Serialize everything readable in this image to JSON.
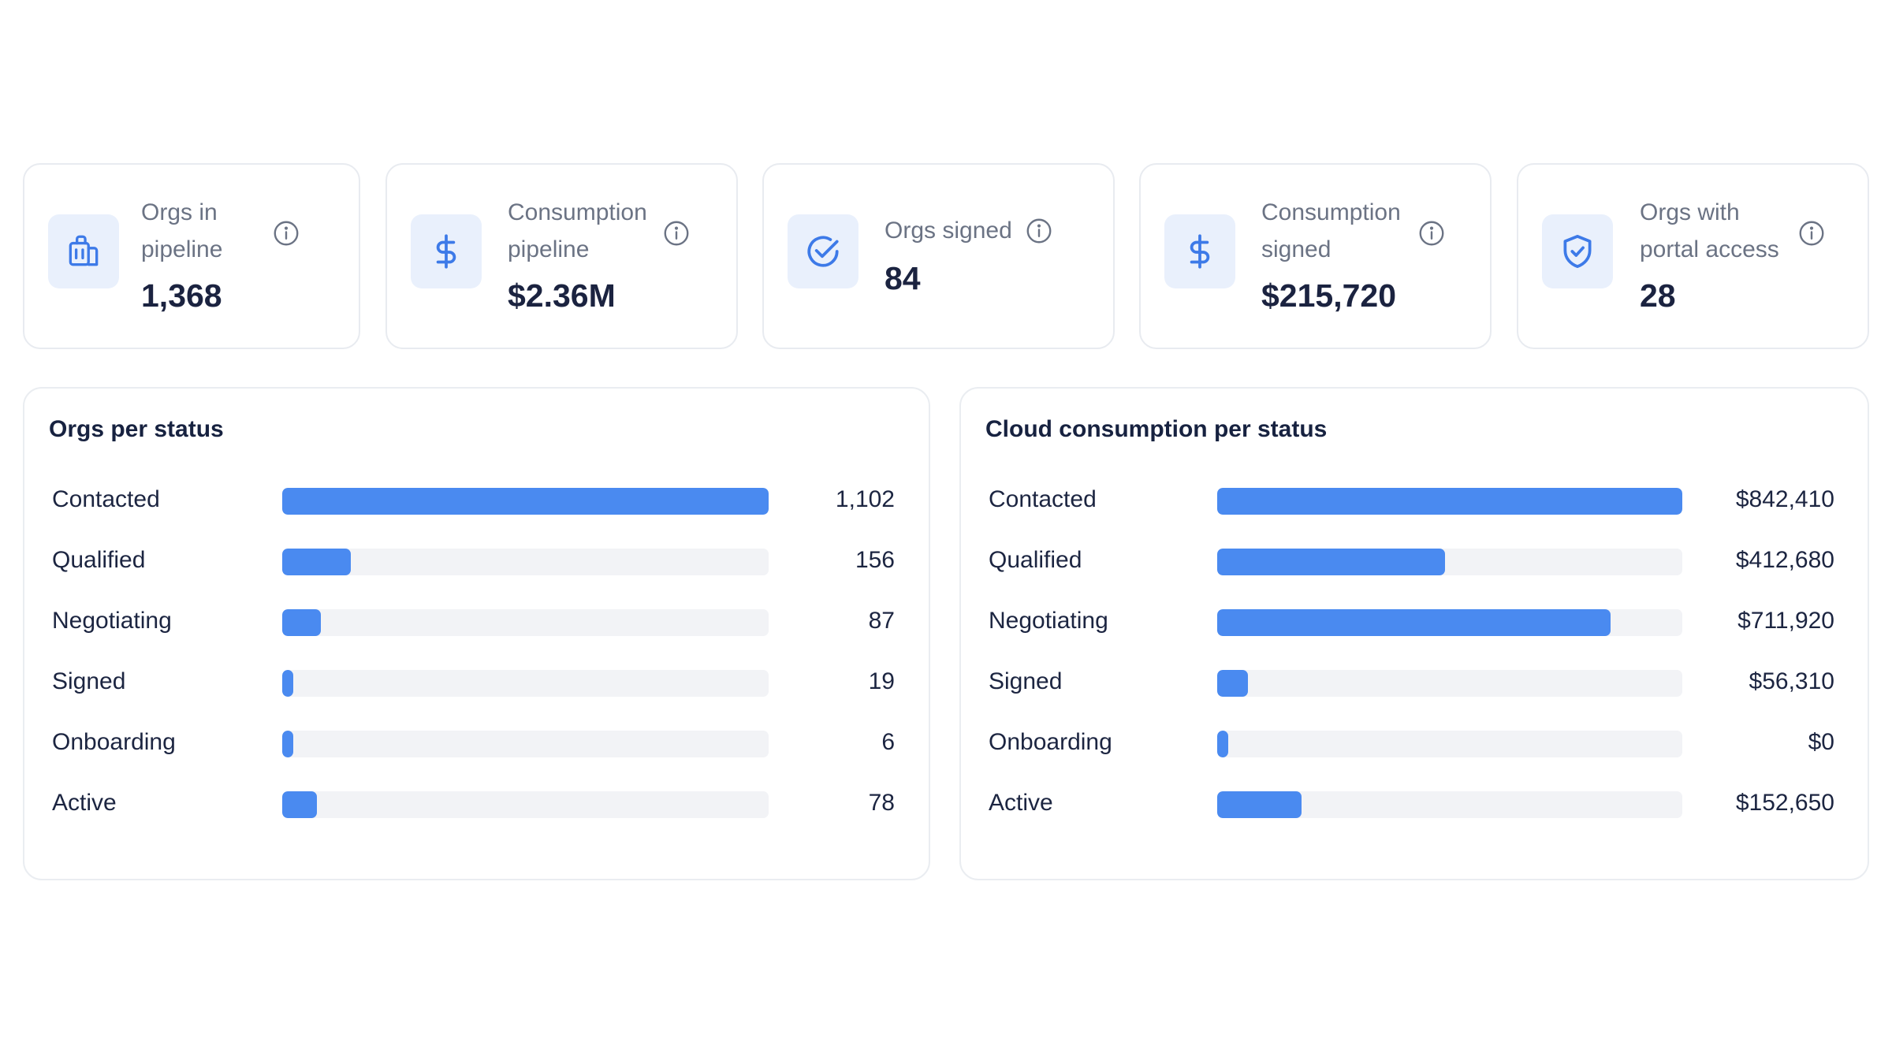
{
  "colors": {
    "accent": "#4a8af0",
    "track": "#f2f3f6",
    "icon_bg": "#e9f0fc",
    "icon_stroke": "#3d7ae8",
    "text_dark": "#1c2541",
    "text_muted": "#6b7384",
    "card_border": "#e8ebf0"
  },
  "kpis": [
    {
      "label_line1": "Orgs in",
      "label_line2": "pipeline",
      "value": "1,368",
      "icon": "building-icon"
    },
    {
      "label_line1": "Consumption",
      "label_line2": "pipeline",
      "value": "$2.36M",
      "icon": "dollar-icon"
    },
    {
      "label_line1": "Orgs signed",
      "label_line2": "",
      "value": "84",
      "icon": "check-circle-icon"
    },
    {
      "label_line1": "Consumption",
      "label_line2": "signed",
      "value": "$215,720",
      "icon": "dollar-icon"
    },
    {
      "label_line1": "Orgs with",
      "label_line2": "portal access",
      "value": "28",
      "icon": "shield-check-icon"
    }
  ],
  "chart_data": [
    {
      "type": "bar",
      "title": "Orgs per status",
      "orientation": "horizontal",
      "categories": [
        "Contacted",
        "Qualified",
        "Negotiating",
        "Signed",
        "Onboarding",
        "Active"
      ],
      "values": [
        1102,
        156,
        87,
        19,
        6,
        78
      ],
      "value_labels": [
        "1,102",
        "156",
        "87",
        "19",
        "6",
        "78"
      ],
      "max": 1102,
      "grid": false
    },
    {
      "type": "bar",
      "title": "Cloud consumption per status",
      "orientation": "horizontal",
      "categories": [
        "Contacted",
        "Qualified",
        "Negotiating",
        "Signed",
        "Onboarding",
        "Active"
      ],
      "values": [
        842410,
        412680,
        711920,
        56310,
        0,
        152650
      ],
      "value_labels": [
        "$842,410",
        "$412,680",
        "$711,920",
        "$56,310",
        "$0",
        "$152,650"
      ],
      "max": 842410,
      "grid": false
    }
  ]
}
